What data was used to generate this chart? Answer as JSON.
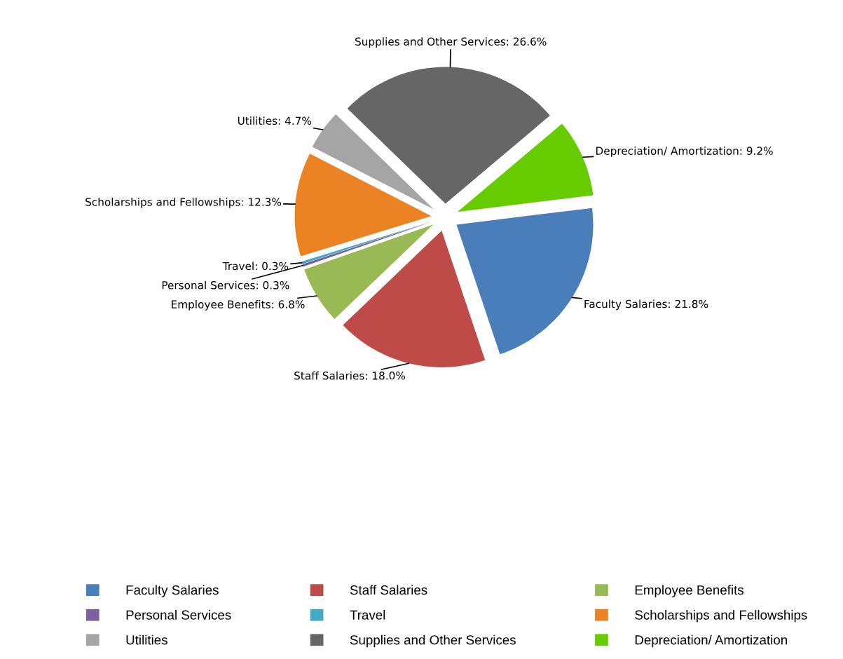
{
  "chart_data": {
    "type": "pie",
    "categories": [
      "Faculty Salaries",
      "Staff Salaries",
      "Employee Benefits",
      "Personal Services",
      "Travel",
      "Scholarships and Fellowships",
      "Utilities",
      "Supplies and Other Services",
      "Depreciation/ Amortization"
    ],
    "values": [
      21.8,
      18.0,
      6.8,
      0.3,
      0.3,
      12.3,
      4.7,
      26.6,
      9.2
    ],
    "colors": [
      "#4a7ebb",
      "#be4b48",
      "#98b954",
      "#7d60a0",
      "#46aac5",
      "#eb8325",
      "#a5a5a5",
      "#666666",
      "#66cc00"
    ],
    "value_labels": [
      "Faculty Salaries: 21.8%",
      "Staff Salaries: 18.0%",
      "Employee Benefits: 6.8%",
      "Personal Services: 0.3%",
      "Travel: 0.3%",
      "Scholarships and Fellowships: 12.3%",
      "Utilities: 4.7%",
      "Supplies and Other Services: 26.6%",
      "Depreciation/ Amortization: 9.2%"
    ],
    "legend": "bottom"
  }
}
